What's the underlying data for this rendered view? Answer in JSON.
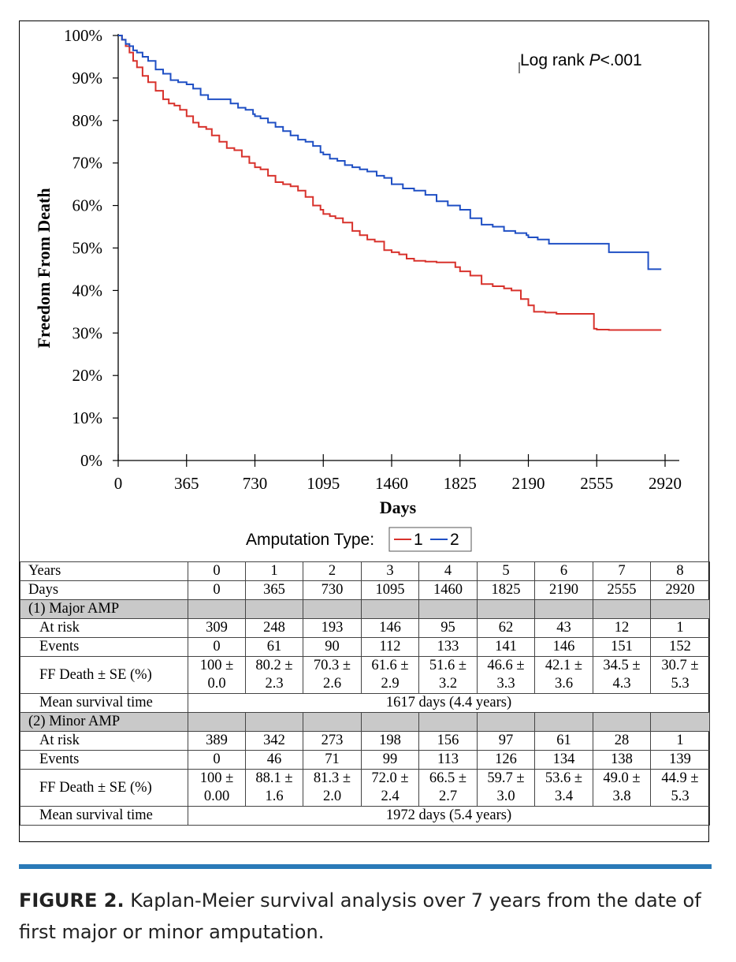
{
  "chart_data": {
    "type": "line",
    "title": "",
    "xlabel": "Days",
    "ylabel": "Freedom From Death",
    "xlim": [
      0,
      2920
    ],
    "ylim": [
      0,
      100
    ],
    "x_ticks": [
      "0",
      "365",
      "730",
      "1095",
      "1460",
      "1825",
      "2190",
      "2555",
      "2920"
    ],
    "y_ticks": [
      "0%",
      "10%",
      "20%",
      "30%",
      "40%",
      "50%",
      "60%",
      "70%",
      "80%",
      "90%",
      "100%"
    ],
    "annotation_prefix": "Log rank ",
    "annotation_italic": "P",
    "annotation_suffix": "<.001",
    "legend_title": "Amputation Type:",
    "legend_placement": "bottom",
    "grid": false,
    "series": [
      {
        "name": "1",
        "color": "#d8322c",
        "x": [
          0,
          20,
          40,
          60,
          80,
          100,
          130,
          160,
          200,
          240,
          270,
          300,
          330,
          365,
          400,
          430,
          470,
          500,
          540,
          580,
          620,
          660,
          700,
          730,
          760,
          800,
          840,
          880,
          920,
          960,
          1000,
          1040,
          1080,
          1095,
          1130,
          1160,
          1200,
          1250,
          1290,
          1330,
          1370,
          1420,
          1460,
          1500,
          1540,
          1580,
          1640,
          1700,
          1760,
          1800,
          1825,
          1880,
          1940,
          2000,
          2060,
          2100,
          2150,
          2190,
          2220,
          2280,
          2340,
          2400,
          2480,
          2540,
          2555,
          2620,
          2700,
          2760,
          2800,
          2900
        ],
        "y": [
          100,
          99,
          97.5,
          96,
          94,
          92.5,
          90.5,
          89,
          87,
          85,
          84,
          83.5,
          82.5,
          81,
          79.5,
          78.5,
          78,
          76.5,
          75,
          73.5,
          73,
          71.5,
          70,
          69,
          68.5,
          67,
          65.5,
          65,
          64.5,
          63.5,
          62,
          60,
          59,
          58,
          57.5,
          57,
          56,
          54,
          53,
          52,
          51.5,
          49.5,
          49,
          48.5,
          47.5,
          47,
          46.8,
          46.6,
          46.6,
          45.5,
          44.5,
          43.5,
          41.5,
          41,
          40.5,
          40,
          38,
          36.5,
          35,
          34.8,
          34.5,
          34.5,
          34.5,
          31,
          30.8,
          30.7,
          30.7,
          30.7,
          30.7,
          30.7
        ]
      },
      {
        "name": "2",
        "color": "#1f4fc4",
        "x": [
          0,
          20,
          40,
          60,
          80,
          100,
          130,
          160,
          200,
          240,
          280,
          320,
          365,
          400,
          440,
          480,
          520,
          560,
          600,
          640,
          680,
          720,
          730,
          760,
          800,
          840,
          880,
          920,
          960,
          1000,
          1040,
          1080,
          1095,
          1130,
          1170,
          1210,
          1250,
          1290,
          1330,
          1380,
          1420,
          1460,
          1520,
          1580,
          1640,
          1700,
          1760,
          1825,
          1880,
          1940,
          2000,
          2060,
          2120,
          2180,
          2190,
          2240,
          2300,
          2360,
          2420,
          2500,
          2555,
          2620,
          2700,
          2760,
          2800,
          2830,
          2900
        ],
        "y": [
          100,
          99,
          98,
          97.5,
          96.5,
          96,
          95,
          94,
          92,
          91,
          89.5,
          89,
          88.5,
          87.5,
          86,
          85,
          85,
          85,
          84,
          83,
          82.5,
          81.5,
          81,
          80.5,
          79.5,
          78.5,
          77.5,
          76.5,
          75.5,
          75,
          74,
          72.5,
          72,
          71,
          70.5,
          69.5,
          69,
          68.5,
          68,
          67,
          66.5,
          65,
          64,
          63.5,
          62.5,
          61,
          60,
          59,
          57,
          55.5,
          55,
          54,
          53.5,
          53,
          52.5,
          52,
          51,
          51,
          51,
          51,
          51,
          49,
          49,
          49,
          49,
          45,
          45
        ]
      }
    ]
  },
  "table": {
    "header_years_label": "Years",
    "header_days_label": "Days",
    "years": [
      "0",
      "1",
      "2",
      "3",
      "4",
      "5",
      "6",
      "7",
      "8"
    ],
    "days": [
      "0",
      "365",
      "730",
      "1095",
      "1460",
      "1825",
      "2190",
      "2555",
      "2920"
    ],
    "groups": [
      {
        "label": "(1) Major AMP",
        "at_risk_label": "At risk",
        "at_risk": [
          "309",
          "248",
          "193",
          "146",
          "95",
          "62",
          "43",
          "12",
          "1"
        ],
        "events_label": "Events",
        "events": [
          "0",
          "61",
          "90",
          "112",
          "133",
          "141",
          "146",
          "151",
          "152"
        ],
        "ff_label": "FF Death ± SE (%)",
        "ff_top": [
          "100 ±",
          "80.2 ±",
          "70.3 ±",
          "61.6 ±",
          "51.6 ±",
          "46.6 ±",
          "42.1 ±",
          "34.5 ±",
          "30.7 ±"
        ],
        "ff_bottom": [
          "0.0",
          "2.3",
          "2.6",
          "2.9",
          "3.2",
          "3.3",
          "3.6",
          "4.3",
          "5.3"
        ],
        "mean_label": "Mean survival time",
        "mean_value": "1617 days (4.4 years)"
      },
      {
        "label": "(2) Minor AMP",
        "at_risk_label": "At risk",
        "at_risk": [
          "389",
          "342",
          "273",
          "198",
          "156",
          "97",
          "61",
          "28",
          "1"
        ],
        "events_label": "Events",
        "events": [
          "0",
          "46",
          "71",
          "99",
          "113",
          "126",
          "134",
          "138",
          "139"
        ],
        "ff_label": "FF Death ± SE (%)",
        "ff_top": [
          "100 ±",
          "88.1 ±",
          "81.3 ±",
          "72.0 ±",
          "66.5 ±",
          "59.7 ±",
          "53.6 ±",
          "49.0 ±",
          "44.9 ±"
        ],
        "ff_bottom": [
          "0.00",
          "1.6",
          "2.0",
          "2.4",
          "2.7",
          "3.0",
          "3.4",
          "3.8",
          "5.3"
        ],
        "mean_label": "Mean survival time",
        "mean_value": "1972 days (5.4 years)"
      }
    ]
  },
  "caption": {
    "figure_label": "FIGURE 2.",
    "text": " Kaplan-Meier survival analysis over 7 years from the date of first major or minor amputation."
  },
  "colors": {
    "rule": "#2a7ab8",
    "group_row_bg": "#c9c9c9"
  }
}
